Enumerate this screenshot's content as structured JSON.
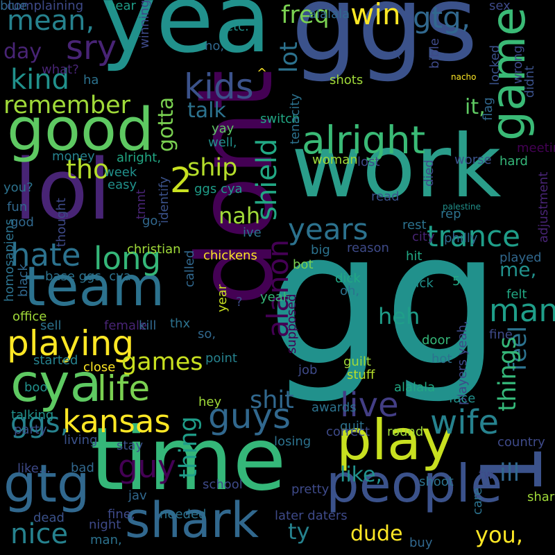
{
  "background_color": "#000000",
  "words": [
    {
      "text": "gg",
      "color": "#21918c",
      "vertical": false
    },
    {
      "text": "ggs",
      "color": "#3b528b",
      "vertical": false
    },
    {
      "text": "yea",
      "color": "#21918c",
      "vertical": false
    },
    {
      "text": "work",
      "color": "#2a9d8a",
      "vertical": false
    },
    {
      "text": "dont",
      "color": "#440154",
      "vertical": true
    },
    {
      "text": "time",
      "color": "#35b779",
      "vertical": false
    },
    {
      "text": "lol",
      "color": "#482475",
      "vertical": false
    },
    {
      "text": "game",
      "color": "#3aba76",
      "vertical": true
    },
    {
      "text": "people",
      "color": "#3b528b",
      "vertical": false
    },
    {
      "text": "1",
      "color": "#3b528b",
      "vertical": true
    },
    {
      "text": "good",
      "color": "#5ec962",
      "vertical": false
    },
    {
      "text": "team",
      "color": "#2c728e",
      "vertical": false
    },
    {
      "text": "play",
      "color": "#c8e020",
      "vertical": false
    },
    {
      "text": "cya",
      "color": "#5ec962",
      "vertical": false
    },
    {
      "text": "gtg",
      "color": "#31688e",
      "vertical": false
    },
    {
      "text": "shark",
      "color": "#31688e",
      "vertical": false
    },
    {
      "text": "alright",
      "color": "#3aba76",
      "vertical": false
    },
    {
      "text": "kids",
      "color": "#3b528b",
      "vertical": false
    },
    {
      "text": "playing",
      "color": "#fde725",
      "vertical": false
    },
    {
      "text": "life",
      "color": "#7ad151",
      "vertical": false
    },
    {
      "text": "guys",
      "color": "#31688e",
      "vertical": false
    },
    {
      "text": "live",
      "color": "#433e85",
      "vertical": false
    },
    {
      "text": "wife",
      "color": "#26828e",
      "vertical": false
    },
    {
      "text": "trance",
      "color": "#1f9e89",
      "vertical": false
    },
    {
      "text": "years",
      "color": "#2c728e",
      "vertical": false
    },
    {
      "text": "man",
      "color": "#1f9e89",
      "vertical": false
    },
    {
      "text": "long",
      "color": "#35b779",
      "vertical": false
    },
    {
      "text": "hate",
      "color": "#2c728e",
      "vertical": false
    },
    {
      "text": "alanon",
      "color": "#440154",
      "vertical": true
    },
    {
      "text": "shield",
      "color": "#22a884",
      "vertical": true
    },
    {
      "text": "kansas",
      "color": "#fde725",
      "vertical": false
    },
    {
      "text": "ggs,",
      "color": "#26828e",
      "vertical": false
    },
    {
      "text": "nice",
      "color": "#26828e",
      "vertical": false
    },
    {
      "text": "win",
      "color": "#fde725",
      "vertical": false
    },
    {
      "text": "gtg,",
      "color": "#31688e",
      "vertical": false
    },
    {
      "text": "mean,",
      "color": "#26828e",
      "vertical": false
    },
    {
      "text": "sry",
      "color": "#482475",
      "vertical": false
    },
    {
      "text": "kind",
      "color": "#21918c",
      "vertical": false
    },
    {
      "text": "remember",
      "color": "#a0da39",
      "vertical": false
    },
    {
      "text": "tho",
      "color": "#b5de2b",
      "vertical": false
    },
    {
      "text": "2",
      "color": "#c8e020",
      "vertical": false
    },
    {
      "text": "ship",
      "color": "#b5de2b",
      "vertical": false
    },
    {
      "text": "nah",
      "color": "#a0da39",
      "vertical": false
    },
    {
      "text": "heh",
      "color": "#1f9e89",
      "vertical": false
    },
    {
      "text": "feel",
      "color": "#2c728e",
      "vertical": true
    },
    {
      "text": "things",
      "color": "#35b779",
      "vertical": true
    },
    {
      "text": "shit",
      "color": "#31688e",
      "vertical": false
    },
    {
      "text": "thing",
      "color": "#1f9e89",
      "vertical": true
    },
    {
      "text": "guy",
      "color": "#440154",
      "vertical": false
    },
    {
      "text": "games",
      "color": "#c8e020",
      "vertical": false
    },
    {
      "text": "like,",
      "color": "#21918c",
      "vertical": false
    },
    {
      "text": "ill",
      "color": "#31688e",
      "vertical": false
    },
    {
      "text": "dude",
      "color": "#fde725",
      "vertical": false
    },
    {
      "text": "you,",
      "color": "#fde725",
      "vertical": false
    },
    {
      "text": "ty",
      "color": "#26828e",
      "vertical": false
    },
    {
      "text": "freq",
      "color": "#7ad151",
      "vertical": false
    },
    {
      "text": "lot",
      "color": "#2c728e",
      "vertical": true
    },
    {
      "text": "it,",
      "color": "#5ec962",
      "vertical": false
    },
    {
      "text": "talk",
      "color": "#2c728e",
      "vertical": false
    },
    {
      "text": "gotta",
      "color": "#7ad151",
      "vertical": true
    },
    {
      "text": "day",
      "color": "#482475",
      "vertical": false
    },
    {
      "text": "me,",
      "color": "#21918c",
      "vertical": false
    },
    {
      "text": "complaining",
      "color": "#3e4a89",
      "vertical": false
    },
    {
      "text": "hear",
      "color": "#1f9e89",
      "vertical": false
    },
    {
      "text": "etc.",
      "color": "#21918c",
      "vertical": false
    },
    {
      "text": "no,",
      "color": "#31688e",
      "vertical": false
    },
    {
      "text": "alalala",
      "color": "#31688e",
      "vertical": false
    },
    {
      "text": ":(",
      "color": "#3b528b",
      "vertical": false
    },
    {
      "text": "sex",
      "color": "#3e4a89",
      "vertical": false
    },
    {
      "text": "what?",
      "color": "#482475",
      "vertical": false
    },
    {
      "text": "ha",
      "color": "#2c728e",
      "vertical": false
    },
    {
      "text": "winning",
      "color": "#3e4a89",
      "vertical": true
    },
    {
      "text": "^",
      "color": "#fde725",
      "vertical": false
    },
    {
      "text": "shots",
      "color": "#a0da39",
      "vertical": false
    },
    {
      "text": "bible",
      "color": "#3e4a89",
      "vertical": true
    },
    {
      "text": "nacho",
      "color": "#fde725",
      "vertical": false
    },
    {
      "text": "locked",
      "color": "#3b528b",
      "vertical": true
    },
    {
      "text": "wrong",
      "color": "#3e4a89",
      "vertical": true
    },
    {
      "text": "didnt",
      "color": "#3b528b",
      "vertical": true
    },
    {
      "text": "switch",
      "color": "#22a884",
      "vertical": false
    },
    {
      "text": "tenacity",
      "color": "#2c728e",
      "vertical": true
    },
    {
      "text": "flag",
      "color": "#31688e",
      "vertical": true
    },
    {
      "text": "yay",
      "color": "#5ec962",
      "vertical": false
    },
    {
      "text": "well,",
      "color": "#21918c",
      "vertical": false
    },
    {
      "text": "meeting",
      "color": "#440154",
      "vertical": false
    },
    {
      "text": "money",
      "color": "#26828e",
      "vertical": false
    },
    {
      "text": "week",
      "color": "#21918c",
      "vertical": false
    },
    {
      "text": "alright,",
      "color": "#22a884",
      "vertical": false
    },
    {
      "text": "woman",
      "color": "#a0da39",
      "vertical": false
    },
    {
      "text": "lost",
      "color": "#3e4a89",
      "vertical": false
    },
    {
      "text": "worse",
      "color": "#3b528b",
      "vertical": false
    },
    {
      "text": "hard",
      "color": "#35b779",
      "vertical": false
    },
    {
      "text": "easy",
      "color": "#21918c",
      "vertical": false
    },
    {
      "text": "ggs cya",
      "color": "#1f9e89",
      "vertical": false
    },
    {
      "text": "you?",
      "color": "#2c728e",
      "vertical": false
    },
    {
      "text": "fun",
      "color": "#31688e",
      "vertical": false
    },
    {
      "text": "god",
      "color": "#31688e",
      "vertical": false
    },
    {
      "text": "thought",
      "color": "#3e4a89",
      "vertical": true
    },
    {
      "text": "tmnt",
      "color": "#482475",
      "vertical": true
    },
    {
      "text": "identify",
      "color": "#3b528b",
      "vertical": true
    },
    {
      "text": "go,",
      "color": "#31688e",
      "vertical": false
    },
    {
      "text": "read",
      "color": "#3b528b",
      "vertical": false
    },
    {
      "text": "rep",
      "color": "#2c728e",
      "vertical": false
    },
    {
      "text": "died",
      "color": "#3e4a89",
      "vertical": true
    },
    {
      "text": "palestine",
      "color": "#21918c",
      "vertical": false
    },
    {
      "text": "adjustment",
      "color": "#482475",
      "vertical": true
    },
    {
      "text": "rest",
      "color": "#2c728e",
      "vertical": false
    },
    {
      "text": "philly",
      "color": "#31688e",
      "vertical": false
    },
    {
      "text": "ive",
      "color": "#2c728e",
      "vertical": false
    },
    {
      "text": "city",
      "color": "#482475",
      "vertical": false
    },
    {
      "text": "homosapiens",
      "color": "#2c728e",
      "vertical": true
    },
    {
      "text": "christian",
      "color": "#a0da39",
      "vertical": false
    },
    {
      "text": "chickens",
      "color": "#fde725",
      "vertical": false
    },
    {
      "text": "big",
      "color": "#2c728e",
      "vertical": false
    },
    {
      "text": "reason",
      "color": "#3e4a89",
      "vertical": false
    },
    {
      "text": "bot",
      "color": "#7ad151",
      "vertical": false
    },
    {
      "text": "hit",
      "color": "#22a884",
      "vertical": false
    },
    {
      "text": "played",
      "color": "#31688e",
      "vertical": false
    },
    {
      "text": "base ggs, cya",
      "color": "#2c728e",
      "vertical": false
    },
    {
      "text": "black",
      "color": "#31688e",
      "vertical": true
    },
    {
      "text": "called",
      "color": "#31688e",
      "vertical": true
    },
    {
      "text": "year",
      "color": "#c8e020",
      "vertical": true
    },
    {
      "text": "?",
      "color": "#3e4a89",
      "vertical": false
    },
    {
      "text": "dick",
      "color": "#22a884",
      "vertical": false
    },
    {
      "text": "oh,",
      "color": "#2c728e",
      "vertical": false
    },
    {
      "text": "pick",
      "color": "#21918c",
      "vertical": false
    },
    {
      "text": "5",
      "color": "#22a884",
      "vertical": false
    },
    {
      "text": "felt",
      "color": "#22a884",
      "vertical": false
    },
    {
      "text": "office",
      "color": "#a0da39",
      "vertical": false
    },
    {
      "text": "sell",
      "color": "#2c728e",
      "vertical": false
    },
    {
      "text": "female",
      "color": "#482475",
      "vertical": false
    },
    {
      "text": "kill",
      "color": "#31688e",
      "vertical": false
    },
    {
      "text": "thx",
      "color": "#2c728e",
      "vertical": false
    },
    {
      "text": "yeah",
      "color": "#35b779",
      "vertical": false
    },
    {
      "text": "supposed",
      "color": "#440154",
      "vertical": true
    },
    {
      "text": "players yeah,",
      "color": "#3e4a89",
      "vertical": true
    },
    {
      "text": "fine",
      "color": "#3e4a89",
      "vertical": false
    },
    {
      "text": "door",
      "color": "#35b779",
      "vertical": false
    },
    {
      "text": "so,",
      "color": "#31688e",
      "vertical": false
    },
    {
      "text": "started",
      "color": "#26828e",
      "vertical": false
    },
    {
      "text": "point",
      "color": "#26828e",
      "vertical": false
    },
    {
      "text": "guilt",
      "color": "#a0da39",
      "vertical": false
    },
    {
      "text": "hot",
      "color": "#2c728e",
      "vertical": false
    },
    {
      "text": "close",
      "color": "#fde725",
      "vertical": false
    },
    {
      "text": "stuff",
      "color": "#b5de2b",
      "vertical": false
    },
    {
      "text": "boo",
      "color": "#21918c",
      "vertical": false
    },
    {
      "text": "job",
      "color": "#3e4a89",
      "vertical": false
    },
    {
      "text": "alalala",
      "color": "#22a884",
      "vertical": false
    },
    {
      "text": "hey",
      "color": "#a0da39",
      "vertical": false
    },
    {
      "text": "awards",
      "color": "#2c728e",
      "vertical": false
    },
    {
      "text": "face",
      "color": "#21918c",
      "vertical": false
    },
    {
      "text": "talking",
      "color": "#21918c",
      "vertical": false
    },
    {
      "text": "quit",
      "color": "#2c728e",
      "vertical": false
    },
    {
      "text": "party",
      "color": "#3b528b",
      "vertical": false
    },
    {
      "text": "correct",
      "color": "#3e4a89",
      "vertical": false
    },
    {
      "text": "round",
      "color": "#a0da39",
      "vertical": false
    },
    {
      "text": "living",
      "color": "#3b528b",
      "vertical": false
    },
    {
      "text": "losing",
      "color": "#2c728e",
      "vertical": false
    },
    {
      "text": "country",
      "color": "#3e4a89",
      "vertical": false
    },
    {
      "text": "stay",
      "color": "#3b528b",
      "vertical": false
    },
    {
      "text": "like...",
      "color": "#3e4a89",
      "vertical": false
    },
    {
      "text": "bad",
      "color": "#31688e",
      "vertical": false
    },
    {
      "text": "pretty",
      "color": "#3e4a89",
      "vertical": false
    },
    {
      "text": "shoot",
      "color": "#2c728e",
      "vertical": false
    },
    {
      "text": "tw",
      "color": "#3e4a89",
      "vertical": false
    },
    {
      "text": "jav",
      "color": "#31688e",
      "vertical": false
    },
    {
      "text": "school",
      "color": "#3e4a89",
      "vertical": false
    },
    {
      "text": "care",
      "color": "#2c728e",
      "vertical": true
    },
    {
      "text": "sharks",
      "color": "#a0da39",
      "vertical": false
    },
    {
      "text": "dead",
      "color": "#3b528b",
      "vertical": false
    },
    {
      "text": "fine,",
      "color": "#3e4a89",
      "vertical": false
    },
    {
      "text": "needed",
      "color": "#2c728e",
      "vertical": false
    },
    {
      "text": "later daters",
      "color": "#3e4a89",
      "vertical": false
    },
    {
      "text": "night",
      "color": "#3e4a89",
      "vertical": false
    },
    {
      "text": "man,",
      "color": "#2c728e",
      "vertical": false
    },
    {
      "text": "buy",
      "color": "#31688e",
      "vertical": false
    },
    {
      "text": "blue",
      "color": "#31688e",
      "vertical": false
    }
  ]
}
